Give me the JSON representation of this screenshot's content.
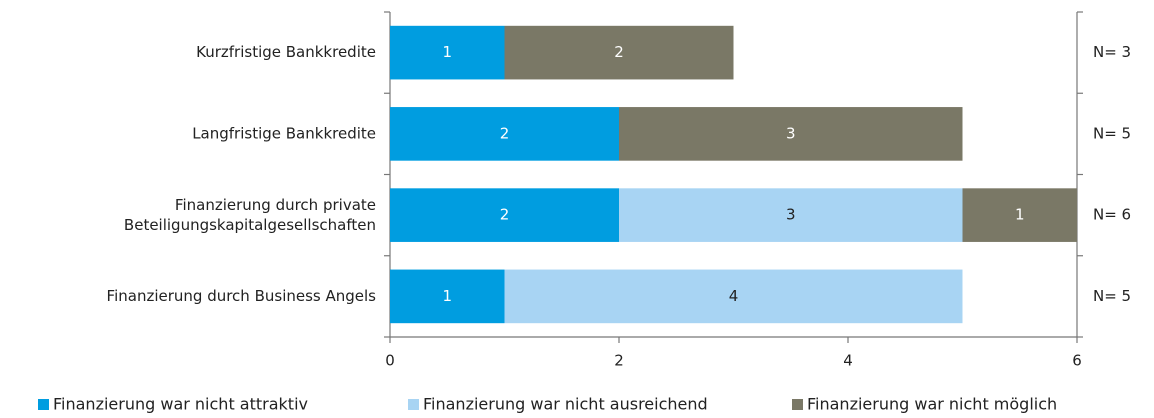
{
  "chart_data": {
    "type": "stacked-barh",
    "categories": [
      "Kurzfristige Bankkredite",
      "Langfristige Bankkredite",
      "Finanzierung durch private\nBeteiligungskapitalgesellschaften",
      "Finanzierung durch Business Angels"
    ],
    "series": [
      {
        "name": "Finanzierung war nicht attraktiv",
        "color": "#009de0",
        "values": [
          1,
          2,
          2,
          1
        ]
      },
      {
        "name": "Finanzierung war nicht ausreichend",
        "color": "#a8d4f3",
        "values": [
          null,
          null,
          3,
          4
        ]
      },
      {
        "name": "Finanzierung war nicht möglich",
        "color": "#7a7866",
        "values": [
          2,
          3,
          1,
          null
        ]
      }
    ],
    "n_labels": [
      "N= 3",
      "N= 5",
      "N= 6",
      "N= 5"
    ],
    "xlim": [
      0,
      6
    ],
    "xticks": [
      0,
      2,
      4,
      6
    ],
    "legend": "bottom"
  }
}
